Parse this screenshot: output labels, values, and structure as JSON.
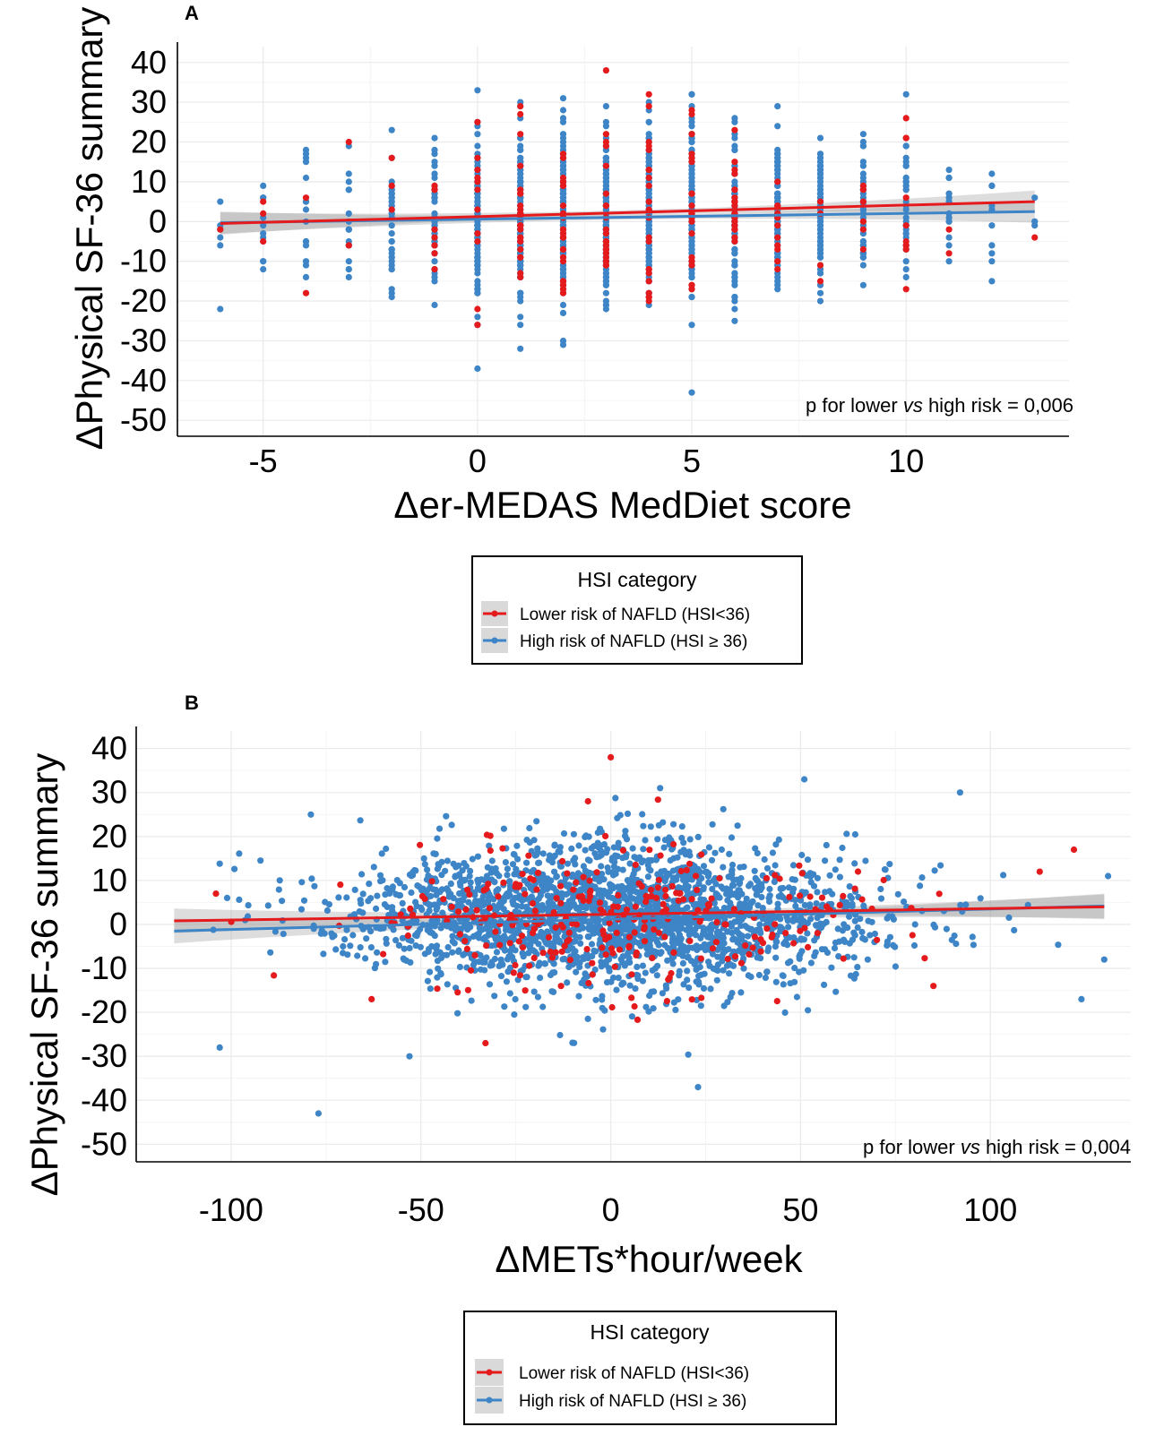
{
  "chart_data": [
    {
      "type": "scatter",
      "panel": "A",
      "xlabel": "Δer-MEDAS MedDiet score",
      "ylabel": "ΔPhysical SF-36 summary",
      "xlim": [
        -7.0,
        13.8
      ],
      "ylim": [
        -54,
        44
      ],
      "xticks": [
        -5,
        0,
        5,
        10
      ],
      "xtick_labels": [
        "-5",
        "0",
        "5",
        "10"
      ],
      "yticks": [
        40,
        30,
        20,
        10,
        0,
        -10,
        -20,
        -30,
        -40,
        -50
      ],
      "ytick_labels": [
        "40",
        "30",
        "20",
        "10",
        "0",
        "-10",
        "-20",
        "-30",
        "-40",
        "-50"
      ],
      "grid": true,
      "annotation": "p for lower vs high risk = 0,006",
      "annotation_parts": [
        "p for lower ",
        "vs",
        " high risk = 0,006"
      ],
      "x_discrete": [
        -6,
        -5,
        -4,
        -3,
        -2,
        -1,
        0,
        1,
        2,
        3,
        4,
        5,
        6,
        7,
        8,
        9,
        10,
        11,
        12,
        13
      ],
      "y_spread_sd": [
        8,
        7,
        9,
        8,
        9,
        10,
        11,
        11,
        11,
        10,
        11,
        11,
        10,
        9,
        9,
        8,
        9,
        7,
        7,
        4
      ],
      "n_per_x": [
        6,
        14,
        16,
        20,
        40,
        60,
        110,
        160,
        200,
        220,
        200,
        200,
        140,
        110,
        80,
        60,
        40,
        18,
        10,
        4
      ],
      "series": [
        {
          "name": "Lower risk of NAFLD (HSI<36)",
          "color": "#e41a1c",
          "fit": {
            "x": [
              -6,
              13
            ],
            "y": [
              -0.5,
              5.0
            ]
          }
        },
        {
          "name": "High risk of NAFLD (HSI ≥ 36)",
          "color": "#3d85c6",
          "fit": {
            "x": [
              -6,
              13
            ],
            "y": [
              -0.3,
              2.5
            ]
          }
        }
      ],
      "confidence_band": true,
      "highlight_points": [
        {
          "series": 0,
          "x": 3,
          "y": 38
        },
        {
          "series": 1,
          "x": 0,
          "y": 33
        },
        {
          "series": 1,
          "x": 10,
          "y": 32
        },
        {
          "series": 1,
          "x": 5,
          "y": -43
        },
        {
          "series": 1,
          "x": 0,
          "y": -37
        },
        {
          "series": 1,
          "x": -6,
          "y": -22
        },
        {
          "series": 0,
          "x": 13,
          "y": -4
        },
        {
          "series": 0,
          "x": 5,
          "y": 28
        },
        {
          "series": 0,
          "x": 10,
          "y": 21
        },
        {
          "series": 0,
          "x": -4,
          "y": -18
        },
        {
          "series": 0,
          "x": 0,
          "y": -26
        }
      ],
      "legend": {
        "title": "HSI category",
        "entries": [
          "Lower risk of NAFLD (HSI<36)",
          "High risk of NAFLD (HSI ≥ 36)"
        ],
        "placement": "bottom"
      },
      "seed": 11
    },
    {
      "type": "scatter",
      "panel": "B",
      "xlabel": "ΔMETs*hour/week",
      "ylabel": "ΔPhysical SF-36 summary",
      "xlim": [
        -125,
        137
      ],
      "ylim": [
        -54,
        44
      ],
      "xticks": [
        -100,
        -50,
        0,
        50,
        100
      ],
      "xtick_labels": [
        "-100",
        "-50",
        "0",
        "50",
        "100"
      ],
      "yticks": [
        40,
        30,
        20,
        10,
        0,
        -10,
        -20,
        -30,
        -40,
        -50
      ],
      "ytick_labels": [
        "40",
        "30",
        "20",
        "10",
        "0",
        "-10",
        "-20",
        "-30",
        "-40",
        "-50"
      ],
      "grid": true,
      "annotation": "p for lower vs high risk = 0,004",
      "annotation_parts": [
        "p for lower ",
        "vs",
        " high risk = 0,004"
      ],
      "n_points": 2600,
      "x_sd": 33,
      "y_sd": 9.5,
      "x_range": [
        -118,
        133
      ],
      "series": [
        {
          "name": "Lower risk of NAFLD (HSI<36)",
          "color": "#e41a1c",
          "fit": {
            "x": [
              -115,
              130
            ],
            "y": [
              0.8,
              4.0
            ]
          }
        },
        {
          "name": "High risk of NAFLD (HSI ≥ 36)",
          "color": "#3d85c6",
          "fit": {
            "x": [
              -115,
              130
            ],
            "y": [
              -1.5,
              4.2
            ]
          }
        }
      ],
      "confidence_band": true,
      "highlight_points": [
        {
          "series": 0,
          "x": 0,
          "y": 38
        },
        {
          "series": 1,
          "x": 51,
          "y": 33
        },
        {
          "series": 1,
          "x": 92,
          "y": 30
        },
        {
          "series": 1,
          "x": -77,
          "y": -43
        },
        {
          "series": 1,
          "x": 23,
          "y": -37
        },
        {
          "series": 1,
          "x": -53,
          "y": -30
        },
        {
          "series": 1,
          "x": -103,
          "y": -28
        },
        {
          "series": 1,
          "x": -79,
          "y": 25
        },
        {
          "series": 1,
          "x": 13,
          "y": 31
        },
        {
          "series": 1,
          "x": 131,
          "y": 11
        },
        {
          "series": 1,
          "x": 130,
          "y": -8
        },
        {
          "series": 1,
          "x": 124,
          "y": -17
        },
        {
          "series": 0,
          "x": 122,
          "y": 17
        },
        {
          "series": 0,
          "x": 113,
          "y": 12
        },
        {
          "series": 0,
          "x": -33,
          "y": -27
        },
        {
          "series": 0,
          "x": -104,
          "y": 7
        },
        {
          "series": 0,
          "x": -63,
          "y": -17
        },
        {
          "series": 0,
          "x": 85,
          "y": -14
        },
        {
          "series": 0,
          "x": -6,
          "y": 28
        }
      ],
      "legend": {
        "title": "HSI category",
        "entries": [
          "Lower risk of NAFLD (HSI<36)",
          "High risk of NAFLD (HSI ≥ 36)"
        ],
        "placement": "bottom"
      },
      "seed": 29
    }
  ]
}
